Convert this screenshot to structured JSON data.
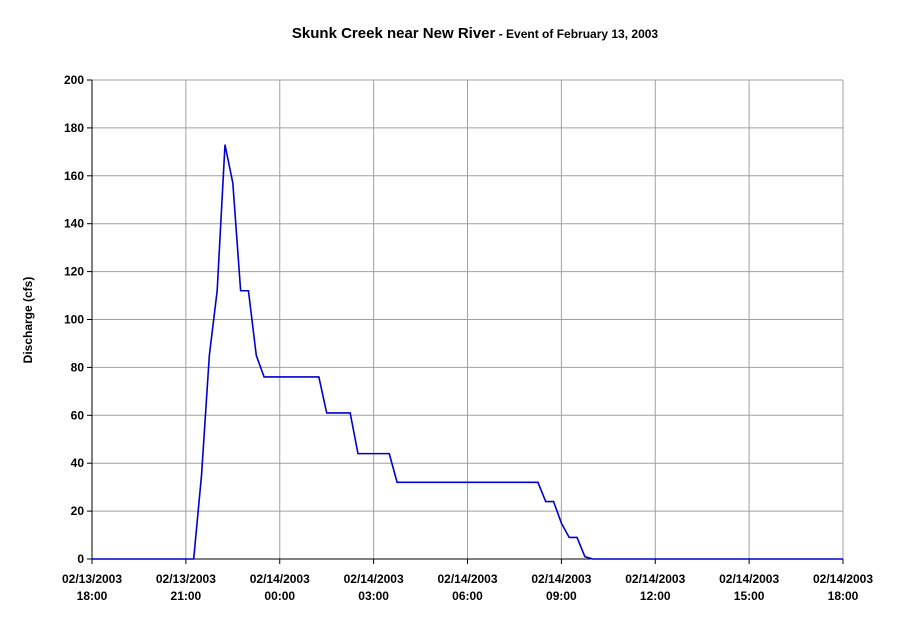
{
  "chart_data": {
    "type": "line",
    "title": "Skunk Creek near New River",
    "subtitle": "- Event of February 13, 2003",
    "y_label": "Discharge (cfs)",
    "x": [
      "2003-02-13 18:00",
      "2003-02-13 21:15",
      "2003-02-13 21:30",
      "2003-02-13 21:45",
      "2003-02-13 22:00",
      "2003-02-13 22:15",
      "2003-02-13 22:30",
      "2003-02-13 22:45",
      "2003-02-13 23:00",
      "2003-02-13 23:15",
      "2003-02-13 23:30",
      "2003-02-14 01:15",
      "2003-02-14 01:30",
      "2003-02-14 02:15",
      "2003-02-14 02:30",
      "2003-02-14 03:30",
      "2003-02-14 03:45",
      "2003-02-14 08:15",
      "2003-02-14 08:30",
      "2003-02-14 08:45",
      "2003-02-14 09:00",
      "2003-02-14 09:15",
      "2003-02-14 09:30",
      "2003-02-14 09:45",
      "2003-02-14 10:00",
      "2003-02-14 18:00"
    ],
    "series": [
      {
        "name": "Discharge",
        "color": "#0000cc",
        "values": [
          0,
          0,
          35,
          85,
          112,
          173,
          157,
          112,
          112,
          85,
          76,
          76,
          61,
          61,
          44,
          44,
          32,
          32,
          24,
          24,
          15,
          9,
          9,
          1,
          0,
          0
        ]
      }
    ],
    "xlim": [
      "2003-02-13 18:00",
      "2003-02-14 18:00"
    ],
    "xticks": [
      {
        "value": "2003-02-13 18:00",
        "label": "02/13/2003 18:00"
      },
      {
        "value": "2003-02-13 21:00",
        "label": "02/13/2003 21:00"
      },
      {
        "value": "2003-02-14 00:00",
        "label": "02/14/2003 00:00"
      },
      {
        "value": "2003-02-14 03:00",
        "label": "02/14/2003 03:00"
      },
      {
        "value": "2003-02-14 06:00",
        "label": "02/14/2003 06:00"
      },
      {
        "value": "2003-02-14 09:00",
        "label": "02/14/2003 09:00"
      },
      {
        "value": "2003-02-14 12:00",
        "label": "02/14/2003 12:00"
      },
      {
        "value": "2003-02-14 15:00",
        "label": "02/14/2003 15:00"
      },
      {
        "value": "2003-02-14 18:00",
        "label": "02/14/2003 18:00"
      }
    ],
    "ylim": [
      0,
      200
    ],
    "yticks": [
      0,
      20,
      40,
      60,
      80,
      100,
      120,
      140,
      160,
      180,
      200
    ],
    "grid": true
  }
}
